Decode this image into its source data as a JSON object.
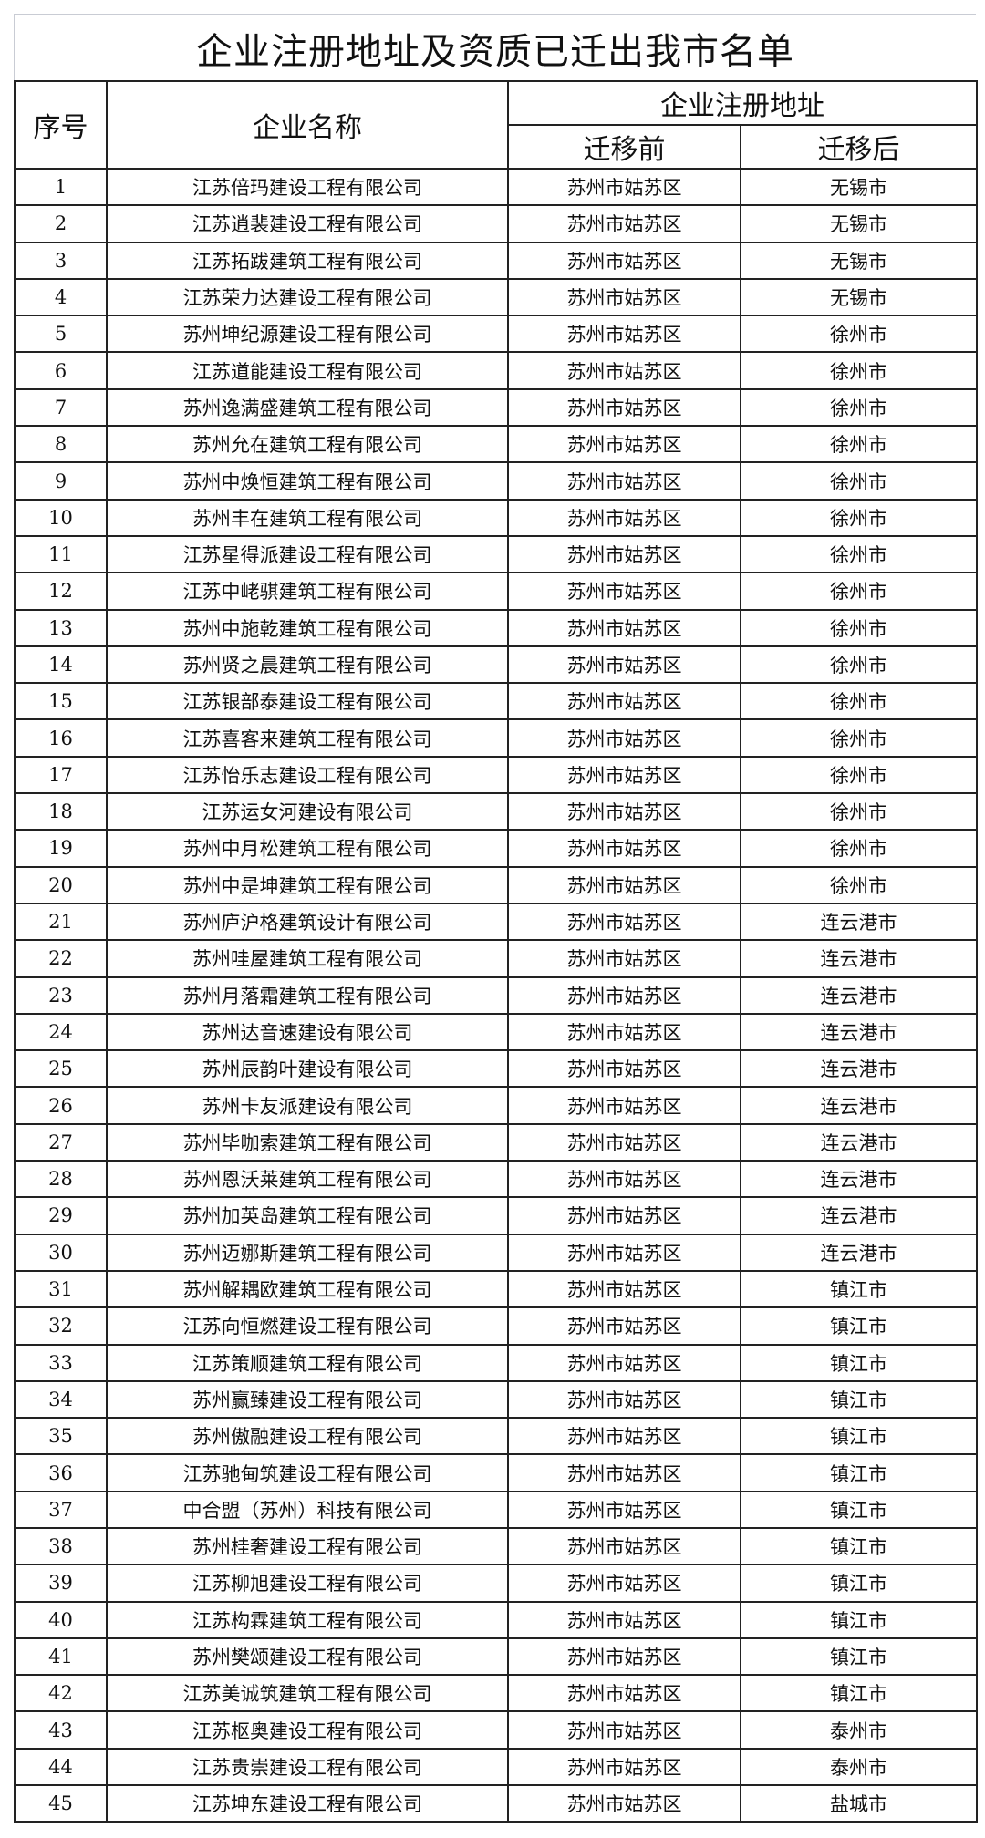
{
  "title": "企业注册地址及资质已迁出我市名单",
  "headers": {
    "index": "序号",
    "name": "企业名称",
    "address_group": "企业注册地址",
    "before": "迁移前",
    "after": "迁移后"
  },
  "rows": [
    [
      "1",
      "江苏倍玛建设工程有限公司",
      "苏州市姑苏区",
      "无锡市"
    ],
    [
      "2",
      "江苏逍裴建设工程有限公司",
      "苏州市姑苏区",
      "无锡市"
    ],
    [
      "3",
      "江苏拓跋建筑工程有限公司",
      "苏州市姑苏区",
      "无锡市"
    ],
    [
      "4",
      "江苏荣力达建设工程有限公司",
      "苏州市姑苏区",
      "无锡市"
    ],
    [
      "5",
      "苏州坤纪源建设工程有限公司",
      "苏州市姑苏区",
      "徐州市"
    ],
    [
      "6",
      "江苏道能建设工程有限公司",
      "苏州市姑苏区",
      "徐州市"
    ],
    [
      "7",
      "苏州逸满盛建筑工程有限公司",
      "苏州市姑苏区",
      "徐州市"
    ],
    [
      "8",
      "苏州允在建筑工程有限公司",
      "苏州市姑苏区",
      "徐州市"
    ],
    [
      "9",
      "苏州中焕恒建筑工程有限公司",
      "苏州市姑苏区",
      "徐州市"
    ],
    [
      "10",
      "苏州丰在建筑工程有限公司",
      "苏州市姑苏区",
      "徐州市"
    ],
    [
      "11",
      "江苏星得派建设工程有限公司",
      "苏州市姑苏区",
      "徐州市"
    ],
    [
      "12",
      "江苏中峔骐建筑工程有限公司",
      "苏州市姑苏区",
      "徐州市"
    ],
    [
      "13",
      "苏州中施乾建筑工程有限公司",
      "苏州市姑苏区",
      "徐州市"
    ],
    [
      "14",
      "苏州贤之晨建筑工程有限公司",
      "苏州市姑苏区",
      "徐州市"
    ],
    [
      "15",
      "江苏银部泰建设工程有限公司",
      "苏州市姑苏区",
      "徐州市"
    ],
    [
      "16",
      "江苏喜客来建筑工程有限公司",
      "苏州市姑苏区",
      "徐州市"
    ],
    [
      "17",
      "江苏怡乐志建设工程有限公司",
      "苏州市姑苏区",
      "徐州市"
    ],
    [
      "18",
      "江苏运女河建设有限公司",
      "苏州市姑苏区",
      "徐州市"
    ],
    [
      "19",
      "苏州中月松建筑工程有限公司",
      "苏州市姑苏区",
      "徐州市"
    ],
    [
      "20",
      "苏州中是坤建筑工程有限公司",
      "苏州市姑苏区",
      "徐州市"
    ],
    [
      "21",
      "苏州庐沪格建筑设计有限公司",
      "苏州市姑苏区",
      "连云港市"
    ],
    [
      "22",
      "苏州哇屋建筑工程有限公司",
      "苏州市姑苏区",
      "连云港市"
    ],
    [
      "23",
      "苏州月落霜建筑工程有限公司",
      "苏州市姑苏区",
      "连云港市"
    ],
    [
      "24",
      "苏州达音速建设有限公司",
      "苏州市姑苏区",
      "连云港市"
    ],
    [
      "25",
      "苏州辰韵叶建设有限公司",
      "苏州市姑苏区",
      "连云港市"
    ],
    [
      "26",
      "苏州卡友派建设有限公司",
      "苏州市姑苏区",
      "连云港市"
    ],
    [
      "27",
      "苏州毕咖索建筑工程有限公司",
      "苏州市姑苏区",
      "连云港市"
    ],
    [
      "28",
      "苏州恩沃莱建筑工程有限公司",
      "苏州市姑苏区",
      "连云港市"
    ],
    [
      "29",
      "苏州加英岛建筑工程有限公司",
      "苏州市姑苏区",
      "连云港市"
    ],
    [
      "30",
      "苏州迈娜斯建筑工程有限公司",
      "苏州市姑苏区",
      "连云港市"
    ],
    [
      "31",
      "苏州解耦欧建筑工程有限公司",
      "苏州市姑苏区",
      "镇江市"
    ],
    [
      "32",
      "江苏向恒燃建设工程有限公司",
      "苏州市姑苏区",
      "镇江市"
    ],
    [
      "33",
      "江苏策顺建筑工程有限公司",
      "苏州市姑苏区",
      "镇江市"
    ],
    [
      "34",
      "苏州赢臻建设工程有限公司",
      "苏州市姑苏区",
      "镇江市"
    ],
    [
      "35",
      "苏州傲融建设工程有限公司",
      "苏州市姑苏区",
      "镇江市"
    ],
    [
      "36",
      "江苏驰甸筑建设工程有限公司",
      "苏州市姑苏区",
      "镇江市"
    ],
    [
      "37",
      "中合盟（苏州）科技有限公司",
      "苏州市姑苏区",
      "镇江市"
    ],
    [
      "38",
      "苏州桂奢建设工程有限公司",
      "苏州市姑苏区",
      "镇江市"
    ],
    [
      "39",
      "江苏柳旭建设工程有限公司",
      "苏州市姑苏区",
      "镇江市"
    ],
    [
      "40",
      "江苏构霖建筑工程有限公司",
      "苏州市姑苏区",
      "镇江市"
    ],
    [
      "41",
      "苏州樊颂建设工程有限公司",
      "苏州市姑苏区",
      "镇江市"
    ],
    [
      "42",
      "江苏美诚筑建筑工程有限公司",
      "苏州市姑苏区",
      "镇江市"
    ],
    [
      "43",
      "江苏枢奥建设工程有限公司",
      "苏州市姑苏区",
      "泰州市"
    ],
    [
      "44",
      "江苏贵崇建设工程有限公司",
      "苏州市姑苏区",
      "泰州市"
    ],
    [
      "45",
      "江苏坤东建设工程有限公司",
      "苏州市姑苏区",
      "盐城市"
    ]
  ]
}
